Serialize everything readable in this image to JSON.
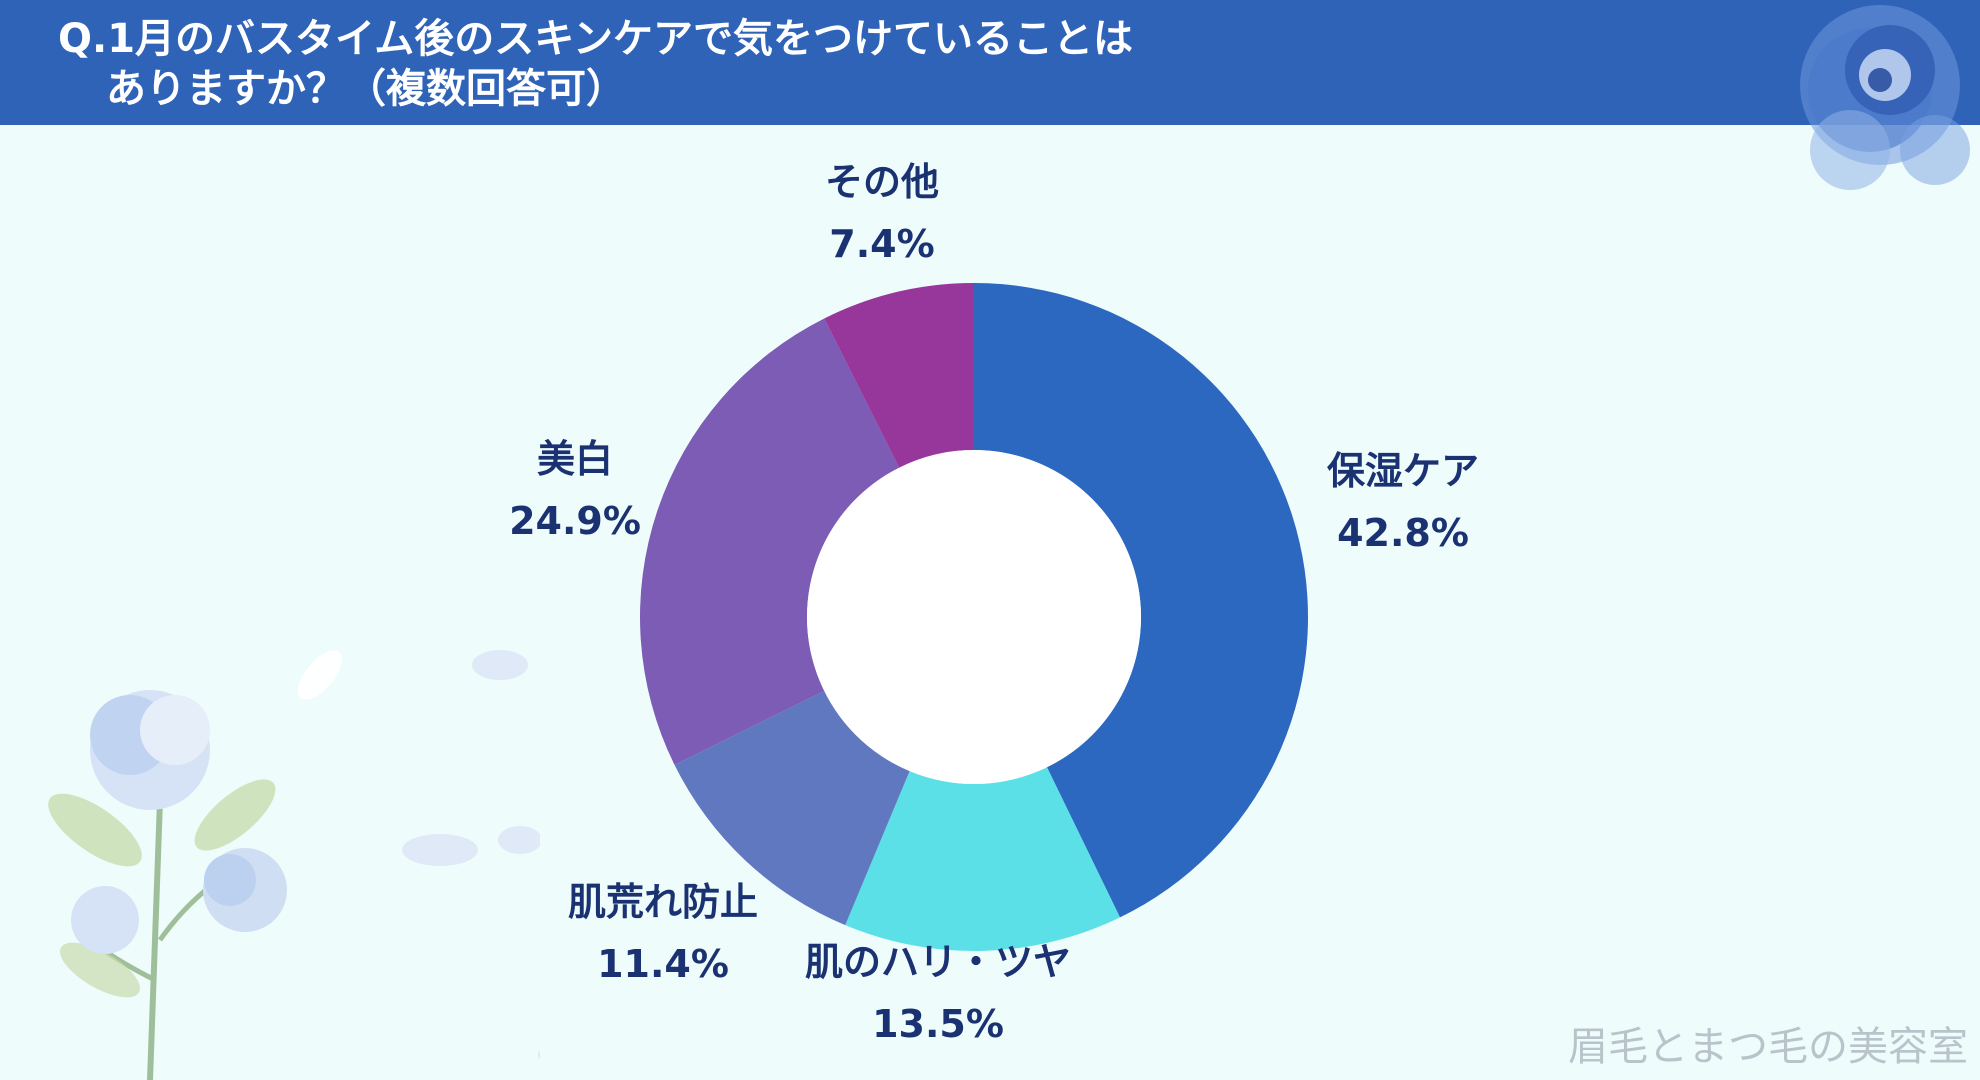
{
  "header": {
    "title_line1": "Q.1月のバスタイム後のスキンケアで気をつけていることは",
    "title_line2": "ありますか？（複数回答可）"
  },
  "colors": {
    "header_bg": "#2f63b8",
    "page_bg": "#effcfc",
    "label_text": "#1a3272"
  },
  "chart_data": {
    "type": "pie",
    "donut": true,
    "title": "Q.1月のバスタイム後のスキンケアで気をつけていることはありますか？（複数回答可）",
    "slices": [
      {
        "name": "保湿ケア",
        "value": 42.8,
        "label": "42.8%",
        "color": "#2c68bf"
      },
      {
        "name": "肌のハリ・ツヤ",
        "value": 13.5,
        "label": "13.5%",
        "color": "#5ae0e6"
      },
      {
        "name": "肌荒れ防止",
        "value": 11.4,
        "label": "11.4%",
        "color": "#5f78c0"
      },
      {
        "name": "美白",
        "value": 24.9,
        "label": "24.9%",
        "color": "#7c5cb5"
      },
      {
        "name": "その他",
        "value": 7.4,
        "label": "7.4%",
        "color": "#97379c"
      }
    ]
  },
  "watermark": "眉毛とまつ毛の美容室"
}
